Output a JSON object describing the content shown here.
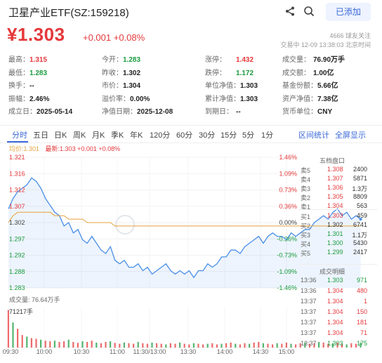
{
  "header": {
    "title": "卫星产业ETF(SZ:159218)",
    "add_label": "已添加",
    "price": "¥1.303",
    "change": "+0.001 +0.08%",
    "followers": "4666 球友关注",
    "trade_info": "交易中 12-09 13:38:03 北京时间"
  },
  "stats": [
    {
      "k": "最高：",
      "v": "1.315",
      "c": "red"
    },
    {
      "k": "今开：",
      "v": "1.283",
      "c": "green"
    },
    {
      "k": "涨停：",
      "v": "1.432",
      "c": "red"
    },
    {
      "k": "成交量：",
      "v": "76.90万手",
      "c": "dark"
    },
    {
      "k": "最低：",
      "v": "1.283",
      "c": "green"
    },
    {
      "k": "昨收：",
      "v": "1.302",
      "c": "dark"
    },
    {
      "k": "跌停：",
      "v": "1.172",
      "c": "green"
    },
    {
      "k": "成交额：",
      "v": "1.00亿",
      "c": "dark"
    },
    {
      "k": "换手：",
      "v": "--",
      "c": "dark"
    },
    {
      "k": "市价：",
      "v": "1.304",
      "c": "dark"
    },
    {
      "k": "单位净值：",
      "v": "1.303",
      "c": "dark"
    },
    {
      "k": "基金份额：",
      "v": "5.66亿",
      "c": "dark"
    },
    {
      "k": "振幅：",
      "v": "2.46%",
      "c": "dark"
    },
    {
      "k": "溢价率：",
      "v": "0.00%",
      "c": "dark"
    },
    {
      "k": "累计净值：",
      "v": "1.303",
      "c": "dark"
    },
    {
      "k": "资产净值：",
      "v": "7.38亿",
      "c": "dark"
    },
    {
      "k": "成立日：",
      "v": "2025-05-14",
      "c": "dark"
    },
    {
      "k": "净值日期：",
      "v": "2025-12-08",
      "c": "dark"
    },
    {
      "k": "到期日：",
      "v": "--",
      "c": "dark"
    },
    {
      "k": "货币单位：",
      "v": "CNY",
      "c": "dark"
    }
  ],
  "tabs": [
    "分时",
    "五日",
    "日K",
    "周K",
    "月K",
    "季K",
    "年K",
    "120分",
    "60分",
    "30分",
    "15分",
    "5分",
    "1分"
  ],
  "active_tab": "分时",
  "tools": [
    "区间统计",
    "全屏显示"
  ],
  "legend": {
    "avg": "均价:1.301",
    "latest": "最新:1.303 +0.001 +0.08%"
  },
  "chart_data": {
    "type": "line",
    "y_left_labels": [
      "1.321",
      "1.316",
      "1.312",
      "1.307",
      "1.302",
      "1.297",
      "1.292",
      "1.288",
      "1.283"
    ],
    "y_right_labels": [
      "1.46%",
      "1.09%",
      "0.73%",
      "0.36%",
      "0.00%",
      "-0.36%",
      "-0.73%",
      "-1.09%",
      "-1.46%"
    ],
    "x_labels": [
      "09:30",
      "10:00",
      "10:30",
      "11:00",
      "11:30/13:00",
      "13:30",
      "14:00",
      "14:30",
      "15:00"
    ],
    "ylim": [
      1.283,
      1.321
    ],
    "prev_close": 1.302,
    "price_series": [
      1.306,
      1.309,
      1.311,
      1.312,
      1.313,
      1.315,
      1.314,
      1.312,
      1.309,
      1.307,
      1.305,
      1.304,
      1.301,
      1.302,
      1.299,
      1.3,
      1.297,
      1.296,
      1.298,
      1.296,
      1.294,
      1.293,
      1.295,
      1.291,
      1.29,
      1.291,
      1.289,
      1.289,
      1.29,
      1.288,
      1.289,
      1.287,
      1.288,
      1.289,
      1.29,
      1.288,
      1.287,
      1.288,
      1.287,
      1.288,
      1.286,
      1.288,
      1.288,
      1.29,
      1.289,
      1.29,
      1.292,
      1.292,
      1.294,
      1.294,
      1.293,
      1.295,
      1.296,
      1.297,
      1.298,
      1.296,
      1.298,
      1.299,
      1.298,
      1.298,
      1.297,
      1.299,
      1.298,
      1.299,
      1.3,
      1.3,
      1.302,
      1.303,
      1.304,
      1.303,
      1.305,
      1.306,
      1.304,
      1.305,
      1.303,
      1.304,
      1.303
    ],
    "avg_series": [
      1.302,
      1.304,
      1.305,
      1.305,
      1.305,
      1.305,
      1.305,
      1.305,
      1.305,
      1.305,
      1.304,
      1.304,
      1.304,
      1.303,
      1.303,
      1.303,
      1.303,
      1.302,
      1.302,
      1.302,
      1.302,
      1.302,
      1.302,
      1.301,
      1.301,
      1.301,
      1.301,
      1.301,
      1.301,
      1.301,
      1.301,
      1.301,
      1.301,
      1.301,
      1.301,
      1.301,
      1.301,
      1.301,
      1.301,
      1.301,
      1.301,
      1.301,
      1.301,
      1.301,
      1.301,
      1.301,
      1.301,
      1.301,
      1.301,
      1.301,
      1.301,
      1.301,
      1.301,
      1.301,
      1.301,
      1.301,
      1.301,
      1.301,
      1.301,
      1.301,
      1.301,
      1.301,
      1.301,
      1.301,
      1.301,
      1.301,
      1.301,
      1.301,
      1.301,
      1.301,
      1.301,
      1.301,
      1.301,
      1.301,
      1.301,
      1.301,
      1.301
    ],
    "volume_series": [
      120,
      80,
      60,
      40,
      35,
      30,
      28,
      25,
      22,
      20,
      22,
      18,
      20,
      25,
      18,
      15,
      20,
      18,
      22,
      16,
      14,
      18,
      20,
      15,
      12,
      16,
      14,
      12,
      18,
      14,
      12,
      16,
      14,
      12,
      10,
      14,
      12,
      16,
      12,
      10,
      14,
      12,
      10,
      12,
      14,
      10,
      12,
      14,
      16,
      12,
      10,
      14,
      12,
      16,
      18,
      14,
      12,
      10,
      14,
      12,
      16,
      12,
      10,
      14,
      16,
      12,
      14,
      18,
      16,
      12,
      14,
      16,
      12,
      10,
      14,
      12,
      16
    ],
    "volume_label": "成交量: 76.64万手",
    "volume_max": "71217手"
  },
  "order_book": {
    "title": "五档盘口",
    "asks": [
      {
        "label": "卖5",
        "price": "1.308",
        "vol": "2400"
      },
      {
        "label": "卖4",
        "price": "1.307",
        "vol": "5871"
      },
      {
        "label": "卖3",
        "price": "1.306",
        "vol": "1.3万"
      },
      {
        "label": "卖2",
        "price": "1.305",
        "vol": "8809"
      },
      {
        "label": "卖1",
        "price": "1.304",
        "vol": "563"
      }
    ],
    "bids": [
      {
        "label": "买1",
        "price": "1.303",
        "vol": "459"
      },
      {
        "label": "买2",
        "price": "1.302",
        "vol": "6741"
      },
      {
        "label": "买3",
        "price": "1.301",
        "vol": "1.1万"
      },
      {
        "label": "买4",
        "price": "1.300",
        "vol": "5430"
      },
      {
        "label": "买5",
        "price": "1.299",
        "vol": "2417"
      }
    ],
    "trades_title": "成交明细",
    "trades": [
      {
        "time": "13:36",
        "price": "1.303",
        "vol": "971"
      },
      {
        "time": "13:36",
        "price": "1.304",
        "vol": "480"
      },
      {
        "time": "13:37",
        "price": "1.304",
        "vol": "1"
      },
      {
        "time": "13:37",
        "price": "1.304",
        "vol": "150"
      },
      {
        "time": "13:37",
        "price": "1.304",
        "vol": "181"
      },
      {
        "time": "13:37",
        "price": "1.304",
        "vol": "71"
      },
      {
        "time": "13:37",
        "price": "1.303",
        "vol": "175"
      }
    ]
  },
  "colors": {
    "red": "#e5383b",
    "green": "#1a9c3e",
    "blue_line": "#4a8fe8",
    "avg_line": "#e6a23c",
    "accent": "#3a68d8"
  }
}
